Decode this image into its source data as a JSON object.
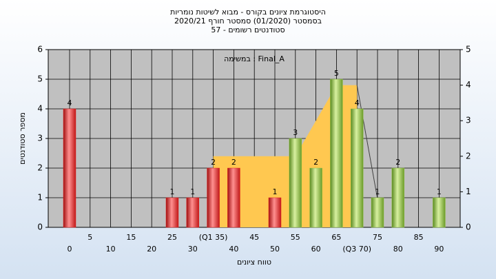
{
  "chart_data": {
    "type": "bar",
    "title": "היסטוגרמת ציונים בקורס - מבוא לשיטות נומריות",
    "subtitle": "בסמסטר  (01/2020)  סמסטר חורף  2020/21",
    "subtitle2": "סטודנטים רשומים - 57",
    "annotation": "במשימה : Final_A",
    "xlabel": "טווח ציונים",
    "ylabel": "מספר סטודנטים",
    "categories": [
      "0",
      "5",
      "10",
      "15",
      "20",
      "25",
      "30",
      "(Q1 35)",
      "40",
      "45",
      "50",
      "55",
      "60",
      "65",
      "(Q3 70)",
      "75",
      "80",
      "85",
      "90"
    ],
    "series": [
      {
        "values": [
          4,
          0,
          0,
          0,
          0,
          1,
          1,
          2,
          2,
          0,
          1,
          3,
          2,
          5,
          4,
          1,
          2,
          0,
          1
        ],
        "colors": [
          "#e02020",
          "#e02020",
          "#e02020",
          "#e02020",
          "#e02020",
          "#e02020",
          "#e02020",
          "#e02020",
          "#e02020",
          "#e02020",
          "#e02020",
          "#8fc040",
          "#8fc040",
          "#8fc040",
          "#8fc040",
          "#8fc040",
          "#8fc040",
          "#8fc040",
          "#8fc040"
        ]
      },
      {
        "type": "area",
        "axis": "y2",
        "color": "#ffc850",
        "values": [
          null,
          null,
          null,
          null,
          null,
          null,
          null,
          2,
          2,
          2,
          2,
          2,
          3,
          4,
          4,
          null,
          null,
          null,
          null
        ]
      },
      {
        "type": "line",
        "axis": "y2",
        "color": "#404040",
        "values": [
          null,
          null,
          null,
          null,
          null,
          null,
          null,
          null,
          null,
          null,
          null,
          null,
          null,
          null,
          4,
          0.8,
          null,
          null,
          null
        ]
      }
    ],
    "ylim": [
      0,
      6
    ],
    "yticks": [
      0,
      1,
      2,
      3,
      4,
      5,
      6
    ],
    "y2lim": [
      0,
      5
    ],
    "y2ticks": [
      0,
      1,
      2,
      3,
      4,
      5
    ],
    "grid": true
  }
}
